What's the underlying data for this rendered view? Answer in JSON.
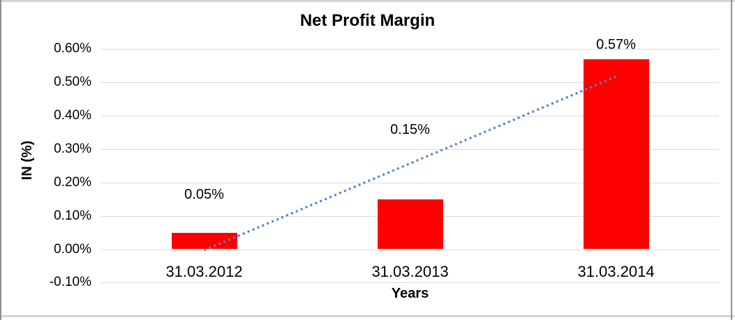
{
  "chart_data": {
    "type": "bar",
    "title": "Net Profit Margin",
    "xlabel": "Years",
    "ylabel": "IN (%)",
    "categories": [
      "31.03.2012",
      "31.03.2013",
      "31.03.2014"
    ],
    "values": [
      0.05,
      0.15,
      0.57
    ],
    "data_labels": [
      "0.05%",
      "0.15%",
      "0.57%"
    ],
    "unit": "percent",
    "ylim": [
      -0.1,
      0.6
    ],
    "ytick_step": 0.1,
    "yticks": [
      {
        "value": 0.6,
        "label": "0.60%"
      },
      {
        "value": 0.5,
        "label": "0.50%"
      },
      {
        "value": 0.4,
        "label": "0.40%"
      },
      {
        "value": 0.3,
        "label": "0.30%"
      },
      {
        "value": 0.2,
        "label": "0.20%"
      },
      {
        "value": 0.1,
        "label": "0.10%"
      },
      {
        "value": 0.0,
        "label": "0.00%"
      },
      {
        "value": -0.1,
        "label": "-0.10%"
      }
    ],
    "grid": "horizontal",
    "legend": "none",
    "trendline": {
      "type": "linear",
      "style": "dotted",
      "start_value": -0.003,
      "end_value": 0.517
    },
    "colors": {
      "bar": "#ff0000",
      "trendline": "#4f86c8",
      "gridline": "#d9d9d9",
      "text": "#000000",
      "frame_horizontal": "#d4d4d4",
      "frame_side": "#8f8f8f"
    }
  }
}
